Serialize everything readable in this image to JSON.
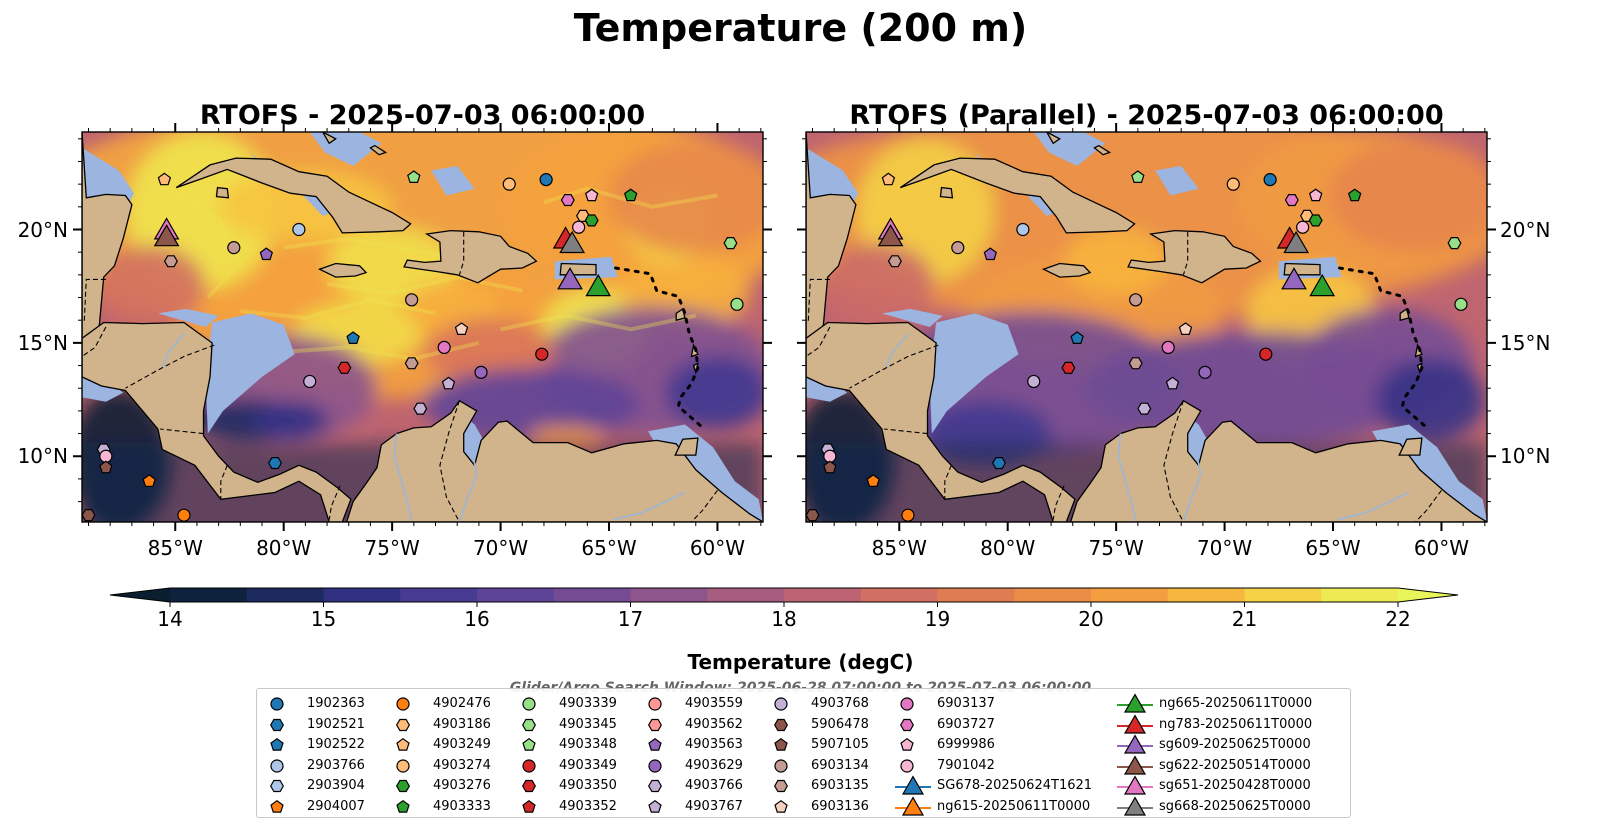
{
  "title": "Temperature (200 m)",
  "panels": [
    {
      "title": "RTOFS - 2025-07-03 06:00:00"
    },
    {
      "title": "RTOFS (Parallel) - 2025-07-03 06:00:00"
    }
  ],
  "map": {
    "lon_range": [
      -89.3,
      -57.9
    ],
    "lat_range": [
      7.1,
      24.3
    ],
    "lon_ticks": [
      -85,
      -80,
      -75,
      -70,
      -65,
      -60
    ],
    "lon_tick_labels": [
      "85°W",
      "80°W",
      "75°W",
      "70°W",
      "65°W",
      "60°W"
    ],
    "lat_ticks": [
      10,
      15,
      20
    ],
    "lat_tick_labels": [
      "10°N",
      "15°N",
      "20°N"
    ],
    "colors": {
      "land": "#d2b48c",
      "shallow_water": "#9bb5e0",
      "coastline": "#000000"
    }
  },
  "colorbar": {
    "label": "Temperature (degC)",
    "min": 14,
    "max": 22,
    "extend": "both",
    "tick_values": [
      14,
      15,
      16,
      17,
      18,
      19,
      20,
      21,
      22
    ],
    "tick_labels": [
      "14",
      "15",
      "16",
      "17",
      "18",
      "19",
      "20",
      "21",
      "22"
    ]
  },
  "search_window": "Glider/Argo Search Window: 2025-06-28 07:00:00 to 2025-07-03 06:00:00",
  "legend": [
    {
      "label": "1902363",
      "marker": "circle",
      "color": "#1f77b4"
    },
    {
      "label": "1902521",
      "marker": "hexagon",
      "color": "#1f77b4"
    },
    {
      "label": "1902522",
      "marker": "pentagon",
      "color": "#1f77b4"
    },
    {
      "label": "2903766",
      "marker": "circle",
      "color": "#aec7e8"
    },
    {
      "label": "2903904",
      "marker": "hexagon",
      "color": "#aec7e8"
    },
    {
      "label": "2904007",
      "marker": "pentagon",
      "color": "#ff7f0e"
    },
    {
      "label": "4902476",
      "marker": "circle",
      "color": "#ff7f0e"
    },
    {
      "label": "4903186",
      "marker": "hexagon",
      "color": "#ffbb78"
    },
    {
      "label": "4903249",
      "marker": "pentagon",
      "color": "#ffbb78"
    },
    {
      "label": "4903274",
      "marker": "circle",
      "color": "#ffbb78"
    },
    {
      "label": "4903276",
      "marker": "hexagon",
      "color": "#2ca02c"
    },
    {
      "label": "4903333",
      "marker": "pentagon",
      "color": "#2ca02c"
    },
    {
      "label": "4903339",
      "marker": "circle",
      "color": "#98df8a"
    },
    {
      "label": "4903345",
      "marker": "hexagon",
      "color": "#98df8a"
    },
    {
      "label": "4903348",
      "marker": "pentagon",
      "color": "#98df8a"
    },
    {
      "label": "4903349",
      "marker": "circle",
      "color": "#d62728"
    },
    {
      "label": "4903350",
      "marker": "hexagon",
      "color": "#d62728"
    },
    {
      "label": "4903352",
      "marker": "pentagon",
      "color": "#d62728"
    },
    {
      "label": "4903559",
      "marker": "circle",
      "color": "#ff9896"
    },
    {
      "label": "4903562",
      "marker": "hexagon",
      "color": "#ff9896"
    },
    {
      "label": "4903563",
      "marker": "pentagon",
      "color": "#9467bd"
    },
    {
      "label": "4903629",
      "marker": "circle",
      "color": "#9467bd"
    },
    {
      "label": "4903766",
      "marker": "hexagon",
      "color": "#c5b0d5"
    },
    {
      "label": "4903767",
      "marker": "pentagon",
      "color": "#c5b0d5"
    },
    {
      "label": "4903768",
      "marker": "circle",
      "color": "#c5b0d5"
    },
    {
      "label": "5906478",
      "marker": "hexagon",
      "color": "#8c564b"
    },
    {
      "label": "5907105",
      "marker": "pentagon",
      "color": "#8c564b"
    },
    {
      "label": "6903134",
      "marker": "circle",
      "color": "#c49c94"
    },
    {
      "label": "6903135",
      "marker": "hexagon",
      "color": "#c49c94"
    },
    {
      "label": "6903136",
      "marker": "pentagon",
      "color": "#f7d0c0"
    },
    {
      "label": "6903137",
      "marker": "circle",
      "color": "#e377c2"
    },
    {
      "label": "6903727",
      "marker": "hexagon",
      "color": "#e377c2"
    },
    {
      "label": "6999986",
      "marker": "pentagon",
      "color": "#f7b6d2"
    },
    {
      "label": "7901042",
      "marker": "circle",
      "color": "#f7b6d2"
    },
    {
      "label": "SG678-20250624T1621",
      "marker": "triangle",
      "color": "#1f77b4"
    },
    {
      "label": "ng615-20250611T0000",
      "marker": "triangle",
      "color": "#ff7f0e"
    },
    {
      "label": "ng665-20250611T0000",
      "marker": "triangle",
      "color": "#2ca02c"
    },
    {
      "label": "ng783-20250611T0000",
      "marker": "triangle",
      "color": "#d62728"
    },
    {
      "label": "sg609-20250625T0000",
      "marker": "triangle",
      "color": "#9467bd"
    },
    {
      "label": "sg622-20250514T0000",
      "marker": "triangle",
      "color": "#8c564b"
    },
    {
      "label": "sg651-20250428T0000",
      "marker": "triangle",
      "color": "#e377c2"
    },
    {
      "label": "sg668-20250625T0000",
      "marker": "triangle",
      "color": "#7f7f7f"
    }
  ],
  "observations": [
    {
      "id": "1902363",
      "lon": -67.9,
      "lat": 22.2
    },
    {
      "id": "2903766",
      "lon": -79.3,
      "lat": 20.0
    },
    {
      "id": "4903274",
      "lon": -69.6,
      "lat": 22.0
    },
    {
      "id": "4903348",
      "lon": -74.0,
      "lat": 22.3
    },
    {
      "id": "4903333",
      "lon": -64.0,
      "lat": 21.5
    },
    {
      "id": "6999986",
      "lon": -65.8,
      "lat": 21.5
    },
    {
      "id": "6903727",
      "lon": -66.9,
      "lat": 21.3
    },
    {
      "id": "4903186",
      "lon": -66.2,
      "lat": 20.6
    },
    {
      "id": "4903276",
      "lon": -65.8,
      "lat": 20.4
    },
    {
      "id": "7901042",
      "lon": -66.4,
      "lat": 20.1
    },
    {
      "id": "4903249",
      "lon": -85.5,
      "lat": 22.2
    },
    {
      "id": "6903134",
      "lon": -82.3,
      "lat": 19.2
    },
    {
      "id": "4903563",
      "lon": -80.8,
      "lat": 18.9
    },
    {
      "id": "6903135",
      "lon": -85.2,
      "lat": 18.6
    },
    {
      "id": "4903345",
      "lon": -59.4,
      "lat": 19.4
    },
    {
      "id": "4903339",
      "lon": -59.1,
      "lat": 16.7
    },
    {
      "id": "6903134",
      "lon": -74.1,
      "lat": 16.9
    },
    {
      "id": "6903136",
      "lon": -71.8,
      "lat": 15.6
    },
    {
      "id": "1902522",
      "lon": -76.8,
      "lat": 15.2
    },
    {
      "id": "6903137",
      "lon": -72.6,
      "lat": 14.8
    },
    {
      "id": "4903349",
      "lon": -68.1,
      "lat": 14.5
    },
    {
      "id": "6903135",
      "lon": -74.1,
      "lat": 14.1
    },
    {
      "id": "4903350",
      "lon": -77.2,
      "lat": 13.9
    },
    {
      "id": "4903768",
      "lon": -78.8,
      "lat": 13.3
    },
    {
      "id": "4903767",
      "lon": -72.4,
      "lat": 13.2
    },
    {
      "id": "4903629",
      "lon": -70.9,
      "lat": 13.7
    },
    {
      "id": "4903766",
      "lon": -73.7,
      "lat": 12.1
    },
    {
      "id": "1902521",
      "lon": -80.4,
      "lat": 9.7
    },
    {
      "id": "4903766",
      "lon": -88.3,
      "lat": 10.3
    },
    {
      "id": "7901042",
      "lon": -88.2,
      "lat": 10.0
    },
    {
      "id": "5907105",
      "lon": -88.2,
      "lat": 9.5
    },
    {
      "id": "2904007",
      "lon": -86.2,
      "lat": 8.9
    },
    {
      "id": "4902476",
      "lon": -84.6,
      "lat": 7.4
    },
    {
      "id": "5906478",
      "lon": -89.0,
      "lat": 7.4
    }
  ],
  "gliders": [
    {
      "id": "sg651-20250428T0000",
      "lon": -85.4,
      "lat": 20.0
    },
    {
      "id": "sg622-20250514T0000",
      "lon": -85.4,
      "lat": 19.7
    },
    {
      "id": "ng783-20250611T0000",
      "lon": -67.0,
      "lat": 19.6
    },
    {
      "id": "sg668-20250625T0000",
      "lon": -66.7,
      "lat": 19.4
    },
    {
      "id": "sg609-20250625T0000",
      "lon": -66.8,
      "lat": 17.8
    },
    {
      "id": "ng665-20250611T0000",
      "lon": -65.5,
      "lat": 17.5
    }
  ]
}
